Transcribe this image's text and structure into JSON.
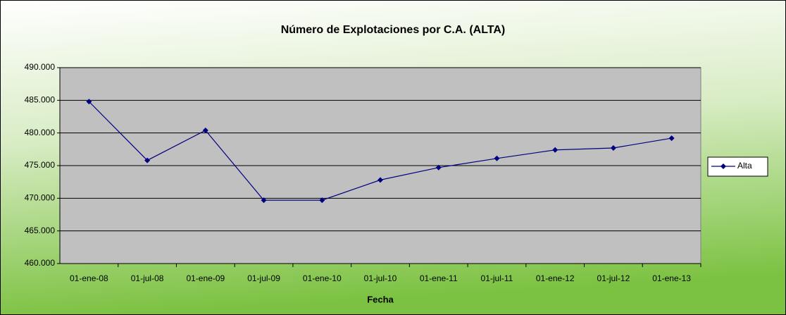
{
  "chart_data": {
    "type": "line",
    "title": "Número de Explotaciones por C.A. (ALTA)",
    "x_label": "Fecha",
    "categories": [
      "01-ene-08",
      "01-jul-08",
      "01-ene-09",
      "01-jul-09",
      "01-ene-10",
      "01-jul-10",
      "01-ene-11",
      "01-jul-11",
      "01-ene-12",
      "01-jul-12",
      "01-ene-13"
    ],
    "series": [
      {
        "name": "Alta",
        "color": "#000080",
        "values": [
          484800,
          475800,
          480400,
          469700,
          469700,
          472800,
          474700,
          476100,
          477400,
          477700,
          479200
        ]
      }
    ],
    "ylim": [
      460000,
      490000
    ],
    "yticks": [
      {
        "value": 460000,
        "label": "460.000"
      },
      {
        "value": 465000,
        "label": "465.000"
      },
      {
        "value": 470000,
        "label": "470.000"
      },
      {
        "value": 475000,
        "label": "475.000"
      },
      {
        "value": 480000,
        "label": "480.000"
      },
      {
        "value": 485000,
        "label": "485.000"
      },
      {
        "value": 490000,
        "label": "490.000"
      }
    ],
    "grid": true,
    "legend": "right"
  }
}
